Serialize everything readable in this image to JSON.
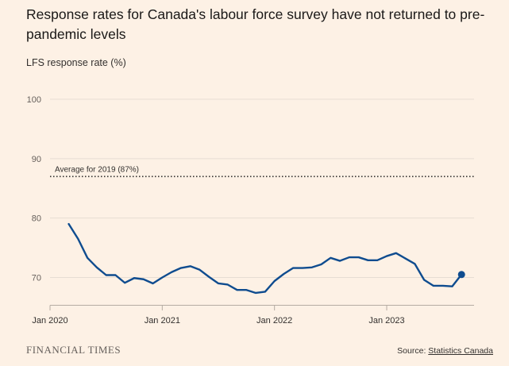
{
  "title": "Response rates for Canada's labour force survey have not returned to pre-pandemic levels",
  "subtitle": "LFS response rate (%)",
  "footer": {
    "brand": "FINANCIAL TIMES",
    "source_prefix": "Source: ",
    "source_link": "Statistics Canada"
  },
  "colors": {
    "background": "#fdf1e5",
    "series": "#0f4c8f",
    "grid": "#e7ddd3",
    "reference_line": "#33302e"
  },
  "chart_data": {
    "type": "line",
    "title": "Response rates for Canada's labour force survey have not returned to pre-pandemic levels",
    "ylabel": "LFS response rate (%)",
    "xlabel": "",
    "x_tick_labels": [
      "Jan 2020",
      "Jan 2021",
      "Jan 2022",
      "Jan 2023"
    ],
    "y_ticks": [
      70,
      80,
      90,
      100
    ],
    "ylim": [
      66,
      100
    ],
    "xlim": [
      "2020-01",
      "2023-10"
    ],
    "grid": true,
    "reference_line": {
      "label": "Average for 2019 (87%)",
      "value": 87
    },
    "end_marker": true,
    "series": [
      {
        "x": [
          "2020-03",
          "2020-04",
          "2020-05",
          "2020-06",
          "2020-07",
          "2020-08",
          "2020-09",
          "2020-10",
          "2020-11",
          "2020-12",
          "2021-01",
          "2021-02",
          "2021-03",
          "2021-04",
          "2021-05",
          "2021-06",
          "2021-07",
          "2021-08",
          "2021-09",
          "2021-10",
          "2021-11",
          "2021-12",
          "2022-01",
          "2022-02",
          "2022-03",
          "2022-04",
          "2022-05",
          "2022-06",
          "2022-07",
          "2022-08",
          "2022-09",
          "2022-10",
          "2022-11",
          "2022-12",
          "2023-01",
          "2023-02",
          "2023-03",
          "2023-04",
          "2023-05",
          "2023-06",
          "2023-07",
          "2023-08",
          "2023-09"
        ],
        "values": [
          79,
          76.5,
          73.3,
          71.7,
          70.4,
          70.4,
          69.1,
          69.9,
          69.7,
          69.0,
          70.0,
          70.9,
          71.6,
          71.9,
          71.3,
          70.1,
          69.0,
          68.8,
          67.9,
          67.9,
          67.4,
          67.6,
          69.4,
          70.6,
          71.6,
          71.6,
          71.7,
          72.2,
          73.3,
          72.8,
          73.4,
          73.4,
          72.9,
          72.9,
          73.6,
          74.1,
          73.2,
          72.3,
          69.6,
          68.6,
          68.6,
          68.5,
          70.5
        ]
      }
    ]
  }
}
